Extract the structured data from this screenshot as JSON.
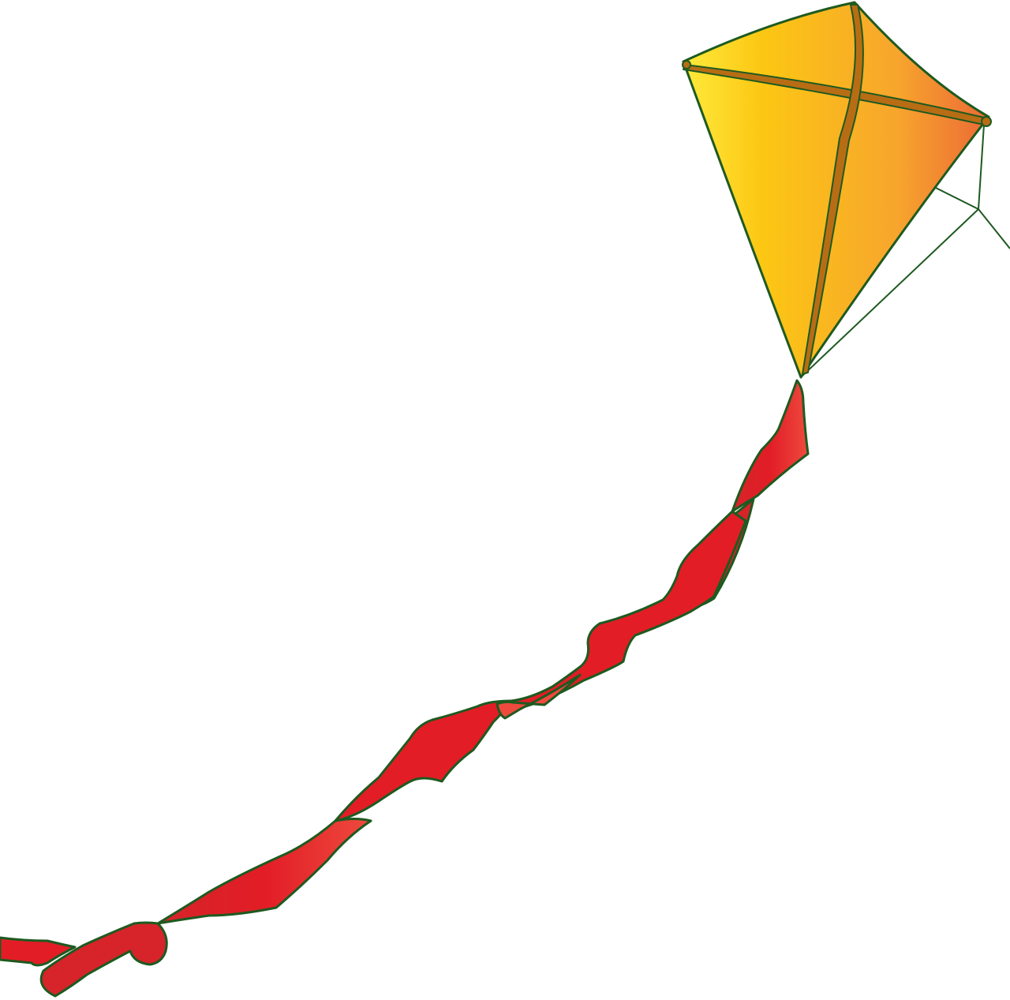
{
  "scene": {
    "subject": "kite",
    "background_color": "#ffffff",
    "outline_color": "#1e5a20",
    "kite": {
      "sail_gradient": [
        "#ffe93a",
        "#fcc713",
        "#f7a52d",
        "#ec6a36"
      ],
      "spar_color": "#b86d14",
      "bridle_color": "#1e5a20"
    },
    "tail": {
      "ribbon_colors": [
        "#e21d26",
        "#ee4a3e",
        "#d6242a"
      ]
    }
  }
}
